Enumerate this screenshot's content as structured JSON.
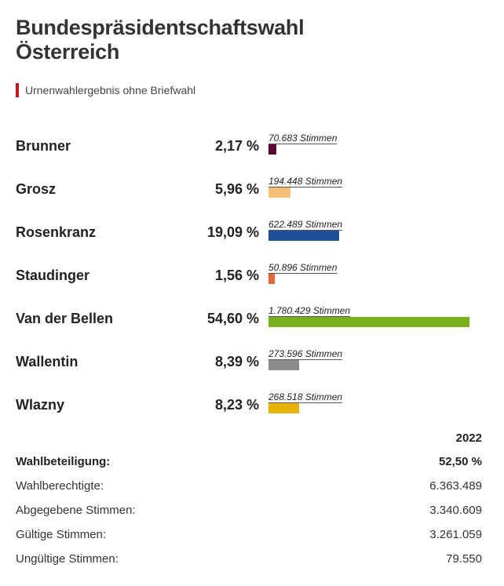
{
  "title_line1": "Bundespräsidentschaftswahl",
  "title_line2": "Österreich",
  "subtitle": "Urnenwahlergebnis ohne Briefwahl",
  "chart_data": {
    "type": "bar",
    "categories": [
      "Brunner",
      "Grosz",
      "Rosenkranz",
      "Staudinger",
      "Van der Bellen",
      "Wallentin",
      "Wlazny"
    ],
    "values": [
      2.17,
      5.96,
      19.09,
      1.56,
      54.6,
      8.39,
      8.23
    ],
    "value_labels": [
      "2,17 %",
      "5,96 %",
      "19,09 %",
      "1,56 %",
      "54,60 %",
      "8,39 %",
      "8,23 %"
    ],
    "vote_labels": [
      "70.683 Stimmen",
      "194.448 Stimmen",
      "622.489 Stimmen",
      "50.896 Stimmen",
      "1.780.429 Stimmen",
      "273.596 Stimmen",
      "268.518 Stimmen"
    ],
    "colors": [
      "#5b0a33",
      "#f5c07a",
      "#21509a",
      "#e8643c",
      "#7cb01a",
      "#8c8c8c",
      "#e5b300"
    ],
    "xlim": [
      0,
      54.6
    ]
  },
  "stats": {
    "year": "2022",
    "rows": [
      {
        "label": "Wahlbeteiligung:",
        "value": "52,50 %"
      },
      {
        "label": "Wahlberechtigte:",
        "value": "6.363.489"
      },
      {
        "label": "Abgegebene Stimmen:",
        "value": "3.340.609"
      },
      {
        "label": "Gültige Stimmen:",
        "value": "3.261.059"
      },
      {
        "label": "Ungültige Stimmen:",
        "value": "79.550"
      }
    ]
  }
}
